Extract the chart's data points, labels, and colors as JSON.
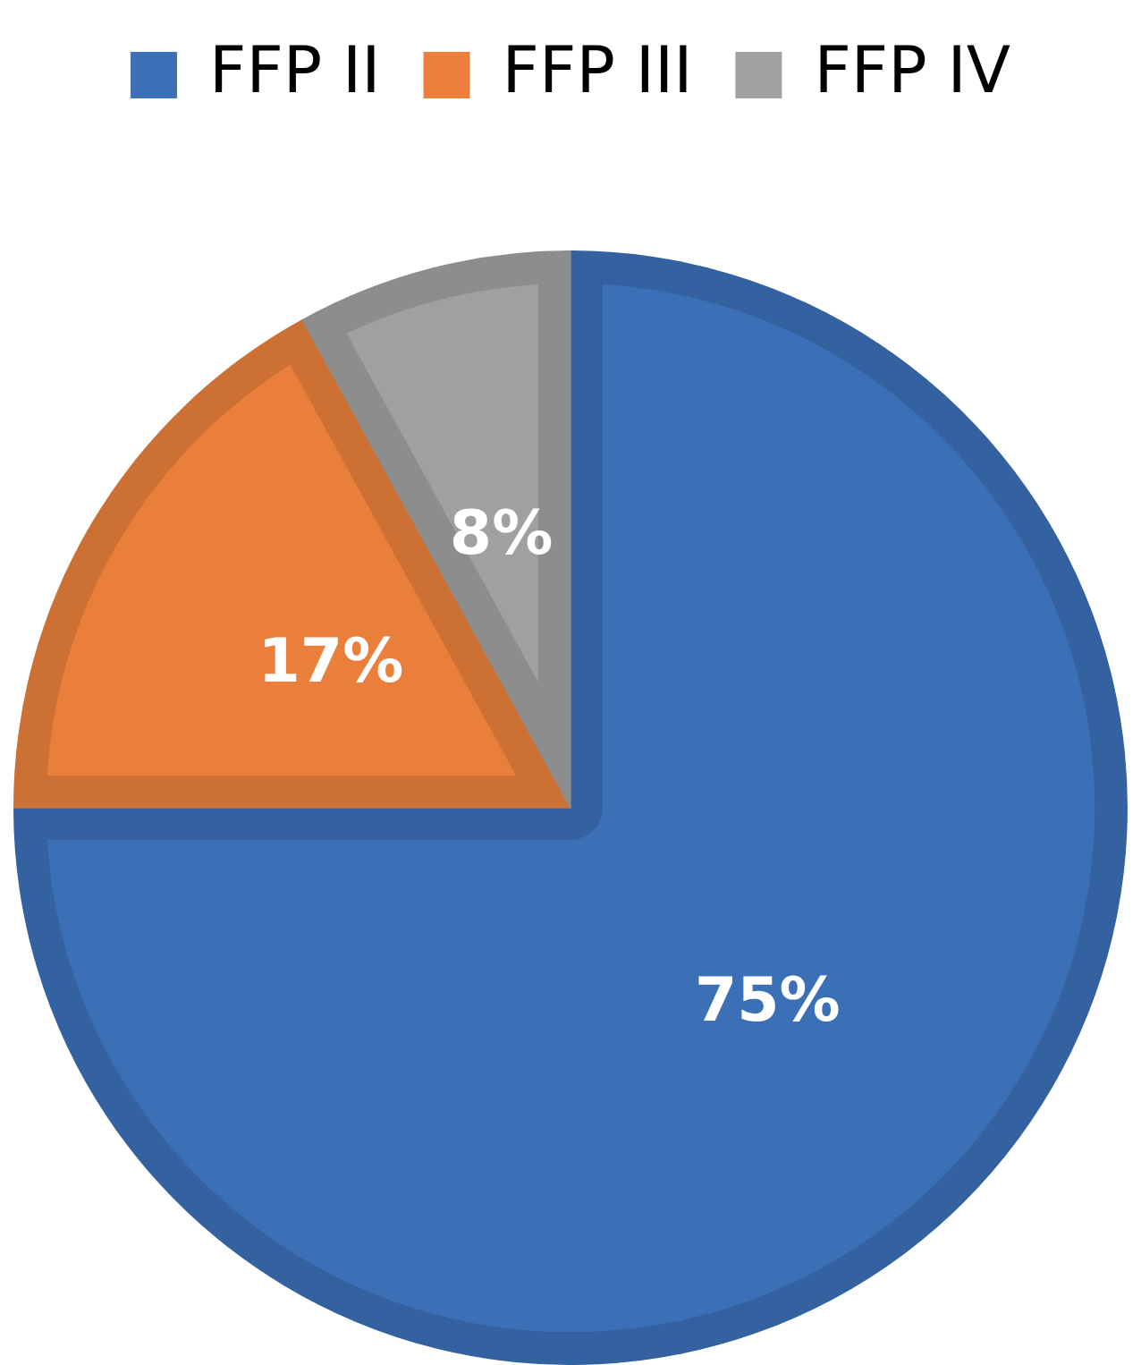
{
  "chart_data": {
    "type": "pie",
    "categories": [
      "FFP II",
      "FFP III",
      "FFP IV"
    ],
    "values": [
      75,
      17,
      8
    ],
    "colors": [
      "#3b6fb6",
      "#e97f3b",
      "#a0a0a0"
    ],
    "value_labels": [
      "75%",
      "17%",
      "8%"
    ],
    "legend": "top"
  }
}
